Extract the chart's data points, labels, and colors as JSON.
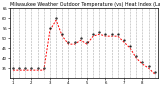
{
  "title": "Milwaukee Weather Outdoor Temperature (vs) Heat Index (Last 24 Hours)",
  "title_fontsize": 3.5,
  "title_color": "#000000",
  "background_color": "#ffffff",
  "plot_bg_color": "#ffffff",
  "line1_color": "#ff0000",
  "line2_color": "#000000",
  "line1_linewidth": 0.7,
  "line2_markersize": 1.2,
  "tick_fontsize": 2.8,
  "ylim": [
    30,
    65
  ],
  "yticks": [
    35,
    40,
    45,
    50,
    55,
    60,
    65
  ],
  "grid_color": "#888888",
  "hours": [
    0,
    1,
    2,
    3,
    4,
    5,
    6,
    7,
    8,
    9,
    10,
    11,
    12,
    13,
    14,
    15,
    16,
    17,
    18,
    19,
    20,
    21,
    22,
    23
  ],
  "temp": [
    35,
    35,
    35,
    35,
    35,
    35,
    55,
    60,
    52,
    48,
    48,
    50,
    48,
    52,
    53,
    52,
    52,
    52,
    49,
    46,
    41,
    38,
    36,
    33
  ],
  "heat_index": [
    34,
    34,
    34,
    34,
    34,
    34,
    54,
    59,
    51,
    47,
    47,
    49,
    47,
    51,
    52,
    51,
    51,
    51,
    48,
    45,
    40,
    37,
    35,
    32
  ],
  "border_color": "#000000",
  "grid_xticks": [
    0,
    1,
    2,
    3,
    4,
    5,
    6,
    7,
    8,
    9,
    10,
    11,
    12,
    13,
    14,
    15,
    16,
    17,
    18,
    19,
    20,
    21,
    22,
    23
  ],
  "xtick_positions": [
    0,
    3,
    6,
    9,
    12,
    15,
    18,
    21
  ],
  "xtick_labels": [
    "1",
    "2",
    "3",
    "4",
    "5",
    "6",
    "7",
    "8"
  ]
}
